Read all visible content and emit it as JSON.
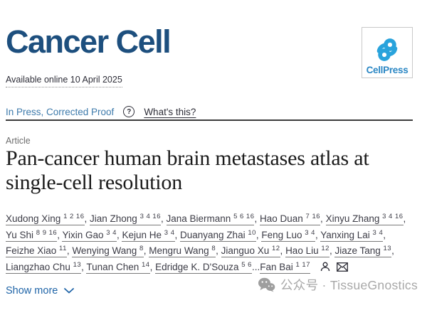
{
  "journal": {
    "name": "Cancer Cell",
    "publisher_logo_text": "CellPress",
    "available_online": "Available online 10 April 2025"
  },
  "status": {
    "in_press": "In Press, Corrected Proof",
    "help_glyph": "?",
    "whats_this": "What's this?"
  },
  "article": {
    "type_label": "Article",
    "title": "Pan-cancer human brain metastases atlas at single-cell resolution"
  },
  "authors": {
    "lines": [
      [
        {
          "name": "Xudong Xing",
          "sups": "1 2 16",
          "sep": ", "
        },
        {
          "name": "Jian Zhong",
          "sups": "3 4 16",
          "sep": ", "
        },
        {
          "name": "Jana Biermann",
          "sups": "5 6 16",
          "sep": ", "
        },
        {
          "name": "Hao Duan",
          "sups": "7 16",
          "sep": ", "
        },
        {
          "name": "Xinyu Zhang",
          "sups": "3 4 16",
          "sep": ","
        }
      ],
      [
        {
          "name": "Yu Shi",
          "sups": "8 9 16",
          "sep": ", "
        },
        {
          "name": "Yixin Gao",
          "sups": "3 4",
          "sep": ", "
        },
        {
          "name": "Kejun He",
          "sups": "3 4",
          "sep": ", "
        },
        {
          "name": "Duanyang Zhai",
          "sups": "10",
          "sep": ", "
        },
        {
          "name": "Feng Luo",
          "sups": "3 4",
          "sep": ", "
        },
        {
          "name": "Yanxing Lai",
          "sups": "3 4",
          "sep": ","
        }
      ],
      [
        {
          "name": "Feizhe Xiao",
          "sups": "11",
          "sep": ", "
        },
        {
          "name": "Wenying Wang",
          "sups": "8",
          "sep": ", "
        },
        {
          "name": "Mengru Wang",
          "sups": "8",
          "sep": ", "
        },
        {
          "name": "Jianguo Xu",
          "sups": "12",
          "sep": ", "
        },
        {
          "name": "Hao Liu",
          "sups": "12",
          "sep": ", "
        },
        {
          "name": "Jiaze Tang",
          "sups": "13",
          "sep": ","
        }
      ],
      [
        {
          "name": "Liangzhao Chu",
          "sups": "13",
          "sep": ", "
        },
        {
          "name": "Tunan Chen",
          "sups": "14",
          "sep": ", "
        },
        {
          "name": "Edridge K. D'Souza",
          "sups": "5 6",
          "sep": "..."
        },
        {
          "name": "Fan Bai",
          "sups": "1 17",
          "sep": ""
        }
      ]
    ]
  },
  "show_more": {
    "label": "Show more"
  },
  "watermark": {
    "text": "公众号 · TissueGnostics"
  },
  "colors": {
    "journal_blue": "#1d4f7e",
    "cellpress_logo_blue": "#29a3dc",
    "cellpress_text_blue": "#2b87c4",
    "in_press_blue": "#3d7aab",
    "show_more_blue": "#2065a8",
    "text_dark": "#2e2e38",
    "label_gray": "#6d6d6d",
    "watermark_gray": "#a7a7a7",
    "rule_dark": "#3c3c3c"
  }
}
